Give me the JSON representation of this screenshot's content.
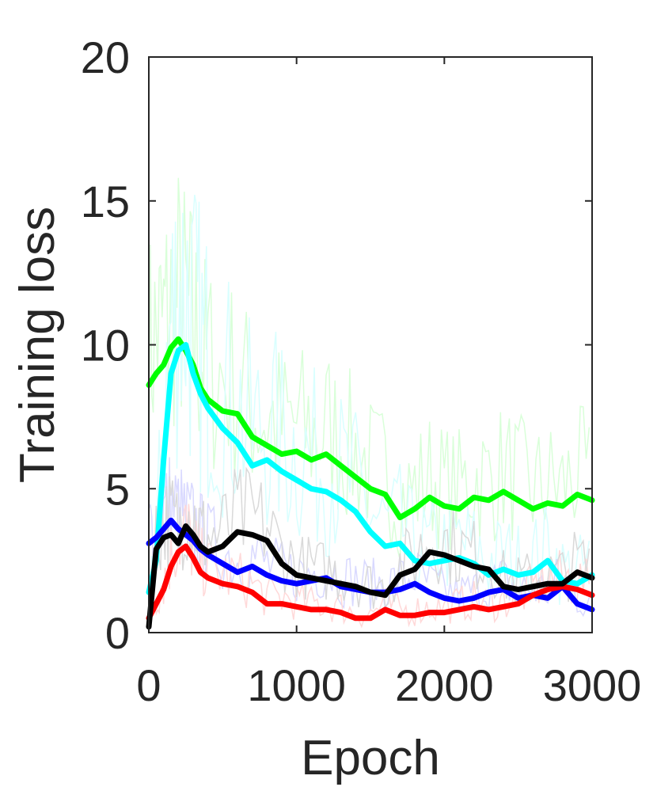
{
  "chart_data": {
    "type": "line",
    "title": "",
    "xlabel": "Epoch",
    "ylabel": "Training loss",
    "xlim": [
      0,
      3000
    ],
    "ylim": [
      0,
      20
    ],
    "xticks": [
      0,
      1000,
      2000,
      3000
    ],
    "yticks": [
      0,
      5,
      10,
      15,
      20
    ],
    "grid": false,
    "legend": "none",
    "series": [
      {
        "color": "#00ff00",
        "x": [
          0,
          50,
          100,
          150,
          200,
          250,
          300,
          350,
          400,
          500,
          600,
          700,
          800,
          900,
          1000,
          1100,
          1200,
          1300,
          1400,
          1500,
          1600,
          1700,
          1800,
          1900,
          2000,
          2100,
          2200,
          2300,
          2400,
          2500,
          2600,
          2700,
          2800,
          2900,
          3000
        ],
        "y": [
          8.6,
          9.0,
          9.3,
          9.9,
          10.2,
          9.8,
          9.3,
          8.5,
          8.1,
          7.7,
          7.6,
          6.8,
          6.5,
          6.2,
          6.3,
          6.0,
          6.2,
          5.8,
          5.4,
          5.0,
          4.8,
          4.0,
          4.3,
          4.7,
          4.4,
          4.3,
          4.7,
          4.6,
          4.9,
          4.6,
          4.3,
          4.5,
          4.4,
          4.8,
          4.6
        ]
      },
      {
        "color": "#00ffff",
        "x": [
          0,
          50,
          100,
          150,
          200,
          250,
          300,
          350,
          400,
          500,
          600,
          700,
          800,
          900,
          1000,
          1100,
          1200,
          1300,
          1400,
          1500,
          1600,
          1700,
          1800,
          1900,
          2000,
          2100,
          2200,
          2300,
          2400,
          2500,
          2600,
          2700,
          2800,
          2900,
          3000
        ],
        "y": [
          1.4,
          2.5,
          6.0,
          9.0,
          9.8,
          10.0,
          9.0,
          8.3,
          7.8,
          7.1,
          6.6,
          5.8,
          6.0,
          5.6,
          5.3,
          5.0,
          4.9,
          4.6,
          4.2,
          3.5,
          3.0,
          3.1,
          2.5,
          2.4,
          2.5,
          2.6,
          2.4,
          2.0,
          2.2,
          2.0,
          2.1,
          2.5,
          1.8,
          1.7,
          2.0
        ]
      },
      {
        "color": "#0000ff",
        "x": [
          0,
          50,
          100,
          150,
          200,
          250,
          300,
          350,
          400,
          500,
          600,
          700,
          800,
          900,
          1000,
          1100,
          1200,
          1300,
          1400,
          1500,
          1600,
          1700,
          1800,
          1900,
          2000,
          2100,
          2200,
          2300,
          2400,
          2500,
          2600,
          2700,
          2800,
          2900,
          3000
        ],
        "y": [
          3.1,
          3.3,
          3.6,
          3.9,
          3.6,
          3.4,
          3.2,
          2.9,
          2.7,
          2.4,
          2.1,
          2.3,
          2.0,
          1.8,
          1.7,
          1.8,
          1.9,
          1.6,
          1.5,
          1.4,
          1.4,
          1.5,
          1.7,
          1.4,
          1.2,
          1.1,
          1.2,
          1.4,
          1.5,
          1.2,
          1.3,
          1.2,
          1.6,
          1.0,
          0.8
        ]
      },
      {
        "color": "#ff0000",
        "x": [
          0,
          50,
          100,
          150,
          200,
          250,
          300,
          350,
          400,
          500,
          600,
          700,
          800,
          900,
          1000,
          1100,
          1200,
          1300,
          1400,
          1500,
          1600,
          1700,
          1800,
          1900,
          2000,
          2100,
          2200,
          2300,
          2400,
          2500,
          2600,
          2700,
          2800,
          2900,
          3000
        ],
        "y": [
          0.5,
          1.0,
          1.5,
          2.3,
          2.8,
          3.0,
          2.6,
          2.1,
          1.9,
          1.7,
          1.6,
          1.4,
          1.0,
          1.0,
          0.9,
          0.8,
          0.8,
          0.7,
          0.5,
          0.5,
          0.8,
          0.6,
          0.6,
          0.7,
          0.7,
          0.8,
          0.9,
          0.8,
          0.9,
          1.0,
          1.3,
          1.5,
          1.6,
          1.5,
          1.3
        ]
      },
      {
        "color": "#000000",
        "x": [
          0,
          50,
          100,
          150,
          200,
          250,
          300,
          350,
          400,
          500,
          600,
          700,
          800,
          900,
          1000,
          1100,
          1200,
          1300,
          1400,
          1500,
          1600,
          1700,
          1800,
          1900,
          2000,
          2100,
          2200,
          2300,
          2400,
          2500,
          2600,
          2700,
          2800,
          2900,
          3000
        ],
        "y": [
          0.2,
          2.9,
          3.3,
          3.4,
          3.1,
          3.7,
          3.4,
          3.0,
          2.8,
          3.0,
          3.5,
          3.4,
          3.2,
          2.4,
          2.0,
          1.9,
          1.8,
          1.7,
          1.6,
          1.4,
          1.3,
          2.0,
          2.2,
          2.8,
          2.7,
          2.5,
          2.3,
          2.2,
          1.6,
          1.5,
          1.6,
          1.7,
          1.7,
          2.1,
          1.9
        ]
      }
    ]
  }
}
